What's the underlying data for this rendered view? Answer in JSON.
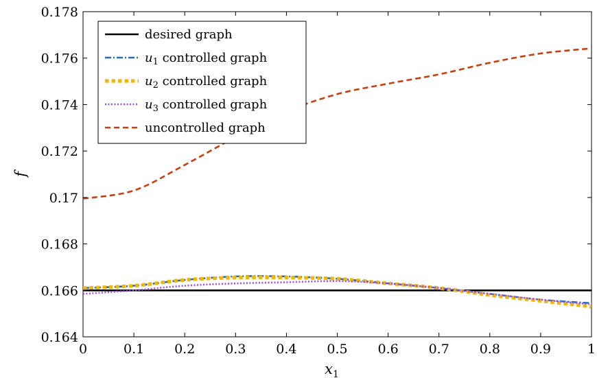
{
  "chart_data": {
    "type": "line",
    "title": "",
    "xlabel": "x1",
    "ylabel": "f",
    "xlim": [
      0,
      1
    ],
    "ylim": [
      0.164,
      0.178
    ],
    "grid": false,
    "legend_position": "top-left",
    "x_ticks": [
      "0",
      "0.1",
      "0.2",
      "0.3",
      "0.4",
      "0.5",
      "0.6",
      "0.7",
      "0.8",
      "0.9",
      "1"
    ],
    "y_ticks": [
      "0.164",
      "0.166",
      "0.168",
      "0.17",
      "0.172",
      "0.174",
      "0.176",
      "0.178"
    ],
    "x": [
      0,
      0.1,
      0.2,
      0.3,
      0.4,
      0.5,
      0.6,
      0.7,
      0.8,
      0.9,
      1.0
    ],
    "series": [
      {
        "name": "desired graph",
        "color": "#000000",
        "style": "solid",
        "values": [
          0.166,
          0.166,
          0.166,
          0.166,
          0.166,
          0.166,
          0.166,
          0.166,
          0.166,
          0.166,
          0.166
        ]
      },
      {
        "name": "u1 controlled graph",
        "color": "#1f6fbf",
        "style": "dashdot",
        "values": [
          0.1661,
          0.1662,
          0.16645,
          0.1666,
          0.1666,
          0.1665,
          0.1663,
          0.1661,
          0.16585,
          0.1656,
          0.16545
        ]
      },
      {
        "name": "u2 controlled graph",
        "color": "#f2b705",
        "style": "thick-dotted",
        "values": [
          0.1661,
          0.1662,
          0.16645,
          0.16655,
          0.16655,
          0.1665,
          0.1663,
          0.1661,
          0.1658,
          0.16555,
          0.1653
        ]
      },
      {
        "name": "u3 controlled graph",
        "color": "#a24cf0",
        "style": "dotted",
        "values": [
          0.16585,
          0.166,
          0.1662,
          0.1663,
          0.16635,
          0.1664,
          0.1663,
          0.1661,
          0.16585,
          0.1656,
          0.1654
        ]
      },
      {
        "name": "uncontrolled graph",
        "color": "#cc3d0a",
        "style": "dashed",
        "values": [
          0.16995,
          0.1703,
          0.1714,
          0.1726,
          0.1737,
          0.17445,
          0.1749,
          0.1753,
          0.1758,
          0.1762,
          0.17642
        ]
      }
    ]
  },
  "legend": {
    "entries": [
      {
        "sym": "",
        "sub": "",
        "rest": "desired graph"
      },
      {
        "sym": "u",
        "sub": "1",
        "rest": " controlled graph"
      },
      {
        "sym": "u",
        "sub": "2",
        "rest": " controlled graph"
      },
      {
        "sym": "u",
        "sub": "3",
        "rest": " controlled graph"
      },
      {
        "sym": "",
        "sub": "",
        "rest": "uncontrolled graph"
      }
    ]
  }
}
